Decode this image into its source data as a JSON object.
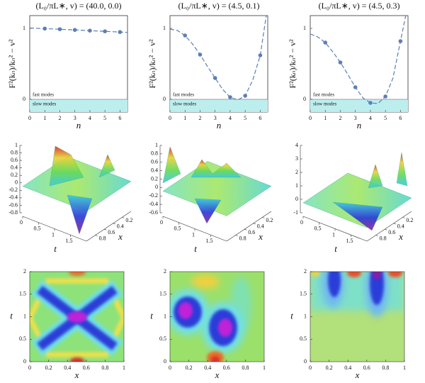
{
  "chart_data": [
    {
      "type": "line",
      "title": "(L₀/πL∗, v) = (40.0, 0.0)",
      "x_label": "n",
      "y_label": "F²(kₙ)/kₙ² − v²",
      "annotations": [
        "fast modes",
        "slow modes"
      ],
      "xlim": [
        0,
        6.5
      ],
      "xticks": [
        0,
        1,
        2,
        3,
        4,
        5,
        6
      ],
      "ylim": [
        -0.18,
        1.18
      ],
      "yticks": [
        0,
        1
      ],
      "color": "#5b7fb5",
      "curve": {
        "x": [
          0,
          1,
          2,
          3,
          4,
          5,
          6,
          6.5
        ],
        "values": [
          1.005,
          0.997,
          0.988,
          0.978,
          0.968,
          0.958,
          0.948,
          0.943
        ]
      },
      "points": {
        "x": [
          1,
          2,
          3,
          4,
          5,
          6
        ],
        "values": [
          0.997,
          0.988,
          0.978,
          0.968,
          0.958,
          0.948
        ]
      }
    },
    {
      "type": "line",
      "title": "(L₀/πL∗, v) = (4.5, 0.1)",
      "x_label": "n",
      "y_label": "F²(kₙ)/kₙ² − v²",
      "annotations": [
        "fast modes",
        "slow modes"
      ],
      "xlim": [
        0,
        6.5
      ],
      "xticks": [
        0,
        1,
        2,
        3,
        4,
        5,
        6
      ],
      "ylim": [
        -0.18,
        1.18
      ],
      "yticks": [
        0,
        1
      ],
      "color": "#5b7fb5",
      "curve": {
        "x": [
          0,
          0.5,
          1,
          1.5,
          2,
          2.5,
          3,
          3.5,
          4,
          4.5,
          5,
          5.5,
          6,
          6.4
        ],
        "values": [
          0.99,
          0.97,
          0.9,
          0.78,
          0.63,
          0.46,
          0.3,
          0.14,
          0.03,
          -0.01,
          0.05,
          0.27,
          0.62,
          1.18
        ]
      },
      "points": {
        "x": [
          1,
          2,
          3,
          4,
          5,
          6
        ],
        "values": [
          0.9,
          0.63,
          0.3,
          0.03,
          0.05,
          0.62
        ]
      }
    },
    {
      "type": "line",
      "title": "(L₀/πL∗, v) = (4.5, 0.3)",
      "x_label": "n",
      "y_label": "F²(kₙ)/kₙ² − v²",
      "annotations": [
        "fast modes",
        "slow modes"
      ],
      "xlim": [
        0,
        6.5
      ],
      "xticks": [
        0,
        1,
        2,
        3,
        4,
        5,
        6
      ],
      "ylim": [
        -0.18,
        1.18
      ],
      "yticks": [
        0,
        1
      ],
      "color": "#5b7fb5",
      "curve": {
        "x": [
          0,
          0.5,
          1,
          1.5,
          2,
          2.5,
          3,
          3.5,
          4,
          4.5,
          5,
          5.5,
          6,
          6.35
        ],
        "values": [
          0.92,
          0.88,
          0.8,
          0.67,
          0.52,
          0.35,
          0.17,
          0.02,
          -0.05,
          -0.06,
          0.04,
          0.3,
          0.82,
          1.18
        ]
      },
      "points": {
        "x": [
          1,
          2,
          3,
          4,
          5,
          6
        ],
        "values": [
          0.8,
          0.52,
          0.17,
          -0.05,
          0.04,
          0.82
        ]
      }
    },
    {
      "type": "surface",
      "x_label": "x",
      "y_label": "t",
      "xlim": [
        0,
        1
      ],
      "xticks": [
        0.2,
        0.4,
        0.6,
        0.8
      ],
      "ylim": [
        0,
        2
      ],
      "yticks": [
        0,
        0.5,
        1,
        1.5
      ],
      "zlim": [
        -0.8,
        1
      ],
      "zticks": [
        -0.8,
        -0.6,
        -0.4,
        -0.2,
        0,
        0.2,
        0.4,
        0.6,
        0.8,
        1
      ]
    },
    {
      "type": "surface",
      "x_label": "x",
      "y_label": "t",
      "xlim": [
        0,
        1
      ],
      "xticks": [
        0.2,
        0.4,
        0.6,
        0.8
      ],
      "ylim": [
        0,
        2
      ],
      "yticks": [
        0,
        0.5,
        1,
        1.5
      ],
      "zlim": [
        -0.6,
        1
      ],
      "zticks": [
        -0.6,
        -0.4,
        -0.2,
        0,
        0.2,
        0.4,
        0.6,
        0.8,
        1
      ]
    },
    {
      "type": "surface",
      "x_label": "x",
      "y_label": "t",
      "xlim": [
        0,
        1
      ],
      "xticks": [
        0.2,
        0.4,
        0.6,
        0.8
      ],
      "ylim": [
        0,
        2
      ],
      "yticks": [
        0,
        0.5,
        1,
        1.5
      ],
      "zlim": [
        -1,
        4
      ],
      "zticks": [
        -1,
        0,
        1,
        2,
        3,
        4
      ]
    },
    {
      "type": "heatmap",
      "x_label": "x",
      "y_label": "t",
      "xlim": [
        0,
        1
      ],
      "xticks": [
        0,
        0.2,
        0.4,
        0.6,
        0.8,
        1
      ],
      "ylim": [
        0,
        2
      ],
      "yticks": [
        0,
        0.5,
        1,
        1.5,
        2
      ]
    },
    {
      "type": "heatmap",
      "x_label": "x",
      "y_label": "t",
      "xlim": [
        0,
        1
      ],
      "xticks": [
        0,
        0.2,
        0.4,
        0.6,
        0.8,
        1
      ],
      "ylim": [
        0,
        2
      ],
      "yticks": [
        0,
        0.5,
        1,
        1.5,
        2
      ]
    },
    {
      "type": "heatmap",
      "x_label": "x",
      "y_label": "t",
      "xlim": [
        0,
        1
      ],
      "xticks": [
        0,
        0.2,
        0.4,
        0.6,
        0.8,
        1
      ],
      "ylim": [
        0,
        2
      ],
      "yticks": [
        0,
        0.5,
        1,
        1.5,
        2
      ]
    }
  ]
}
